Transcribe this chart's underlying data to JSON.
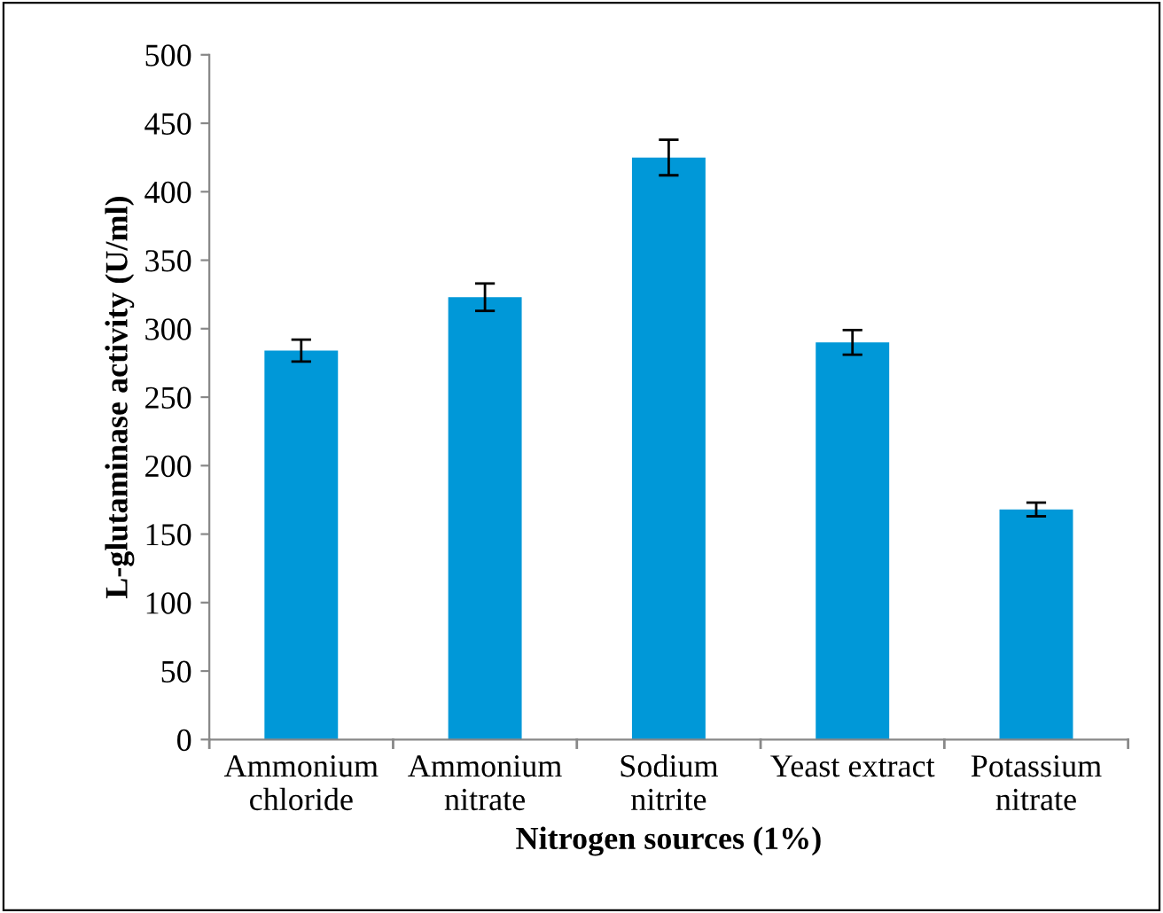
{
  "chart_data": {
    "type": "bar",
    "xlabel": "Nitrogen sources (1%)",
    "ylabel": "L-glutaminase activity (U/ml)",
    "categories": [
      "Ammonium\nchloride",
      "Ammonium\nnitrate",
      "Sodium\nnitrite",
      "Yeast extract",
      "Potassium\nnitrate"
    ],
    "values": [
      284,
      323,
      425,
      290,
      168
    ],
    "errors": [
      8,
      10,
      13,
      9,
      5
    ],
    "color": "#0098d8",
    "ylim": [
      0,
      500
    ],
    "yticks": [
      0,
      50,
      100,
      150,
      200,
      250,
      300,
      350,
      400,
      450,
      500
    ],
    "grid": false,
    "legend": false
  }
}
